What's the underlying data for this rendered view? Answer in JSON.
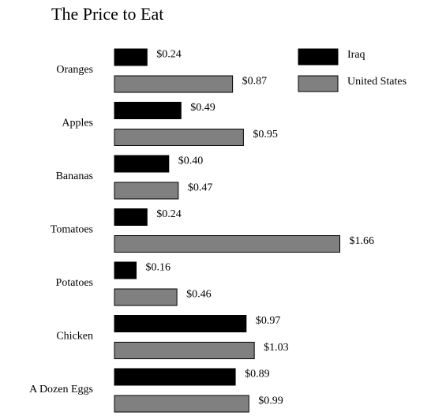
{
  "chart_data": {
    "type": "bar",
    "orientation": "horizontal",
    "title": "The Price to Eat",
    "categories": [
      "Oranges",
      "Apples",
      "Bananas",
      "Tomatoes",
      "Potatoes",
      "Chicken",
      "A Dozen Eggs"
    ],
    "series": [
      {
        "name": "Iraq",
        "color": "#000000",
        "values": [
          0.24,
          0.49,
          0.4,
          0.24,
          0.16,
          0.97,
          0.89
        ],
        "value_labels": [
          "$0.24",
          "$0.49",
          "$0.40",
          "$0.24",
          "$0.16",
          "$0.97",
          "$0.89"
        ]
      },
      {
        "name": "United States",
        "color": "#808080",
        "values": [
          0.87,
          0.95,
          0.47,
          1.66,
          0.46,
          1.03,
          0.99
        ],
        "value_labels": [
          "$0.87",
          "$0.95",
          "$0.47",
          "$1.66",
          "$0.46",
          "$1.03",
          "$0.99"
        ]
      }
    ],
    "legend": "top-right"
  }
}
